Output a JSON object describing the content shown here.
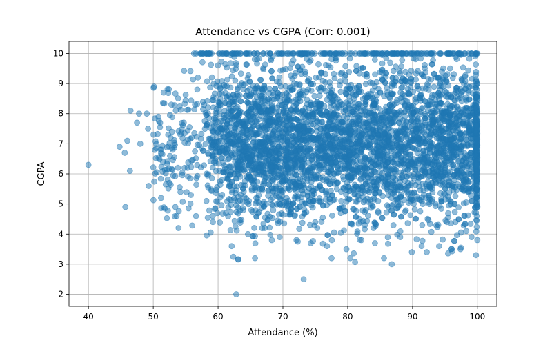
{
  "chart_data": {
    "type": "scatter",
    "title": "Attendance vs CGPA (Corr: 0.001)",
    "xlabel": "Attendance (%)",
    "ylabel": "CGPA",
    "xlim": [
      37,
      103
    ],
    "ylim": [
      1.6,
      10.4
    ],
    "xticks": [
      40,
      50,
      60,
      70,
      80,
      90,
      100
    ],
    "yticks": [
      2,
      3,
      4,
      5,
      6,
      7,
      8,
      9,
      10
    ],
    "grid": true,
    "marker_color": "#1f77b4",
    "marker_alpha": 0.5,
    "series": [
      {
        "points": [
          [
            40,
            6.3
          ],
          [
            45.7,
            4.9
          ],
          [
            44.8,
            6.9
          ],
          [
            45.6,
            6.7
          ],
          [
            46,
            7.1
          ],
          [
            46.4,
            6.1
          ],
          [
            46.5,
            8.1
          ],
          [
            47.5,
            7.7
          ],
          [
            47.8,
            8.0
          ],
          [
            48.0,
            7.0
          ],
          [
            49.0,
            8.0
          ],
          [
            49.2,
            7.5
          ],
          [
            49.3,
            5.6
          ],
          [
            50.1,
            8.9
          ],
          [
            50.8,
            7.9
          ],
          [
            51.2,
            5.2
          ],
          [
            51.5,
            6.4
          ],
          [
            51.6,
            8.7
          ],
          [
            52.3,
            7.3
          ],
          [
            52.5,
            5.7
          ],
          [
            52.8,
            8.3
          ],
          [
            53.0,
            6.8
          ],
          [
            53.4,
            4.9
          ],
          [
            53.6,
            4.6
          ],
          [
            53.9,
            4.2
          ],
          [
            54.2,
            5.4
          ],
          [
            54.7,
            7.7
          ],
          [
            55.3,
            6.2
          ],
          [
            55.8,
            5.3
          ],
          [
            56.3,
            10.0
          ],
          [
            56.6,
            4.6
          ],
          [
            56.9,
            9.2
          ],
          [
            57.7,
            10.0
          ],
          [
            58.2,
            5.1
          ],
          [
            58.6,
            10.0
          ],
          [
            59.2,
            4.4
          ],
          [
            60.3,
            10.0
          ],
          [
            61.3,
            10.0
          ],
          [
            62.1,
            3.6
          ],
          [
            62.8,
            2.0
          ],
          [
            63.4,
            10.0
          ],
          [
            64.6,
            4.0
          ],
          [
            65.7,
            3.2
          ],
          [
            67.2,
            4.2
          ],
          [
            68.3,
            3.8
          ],
          [
            69.5,
            3.9
          ],
          [
            72.1,
            3.8
          ],
          [
            73.2,
            2.5
          ],
          [
            74.3,
            3.7
          ],
          [
            76.8,
            3.6
          ],
          [
            77.5,
            3.2
          ],
          [
            79.8,
            3.5
          ],
          [
            80.4,
            3.2
          ],
          [
            82.1,
            3.8
          ],
          [
            84.2,
            3.7
          ],
          [
            85.6,
            3.2
          ],
          [
            86.8,
            3.0
          ],
          [
            88.1,
            3.9
          ],
          [
            89.9,
            3.4
          ],
          [
            91.4,
            3.6
          ],
          [
            92.2,
            3.4
          ],
          [
            94.1,
            3.6
          ],
          [
            95.3,
            4.4
          ],
          [
            96.6,
            4.4
          ],
          [
            97.4,
            3.5
          ],
          [
            98.3,
            4.1
          ],
          [
            99.1,
            3.9
          ],
          [
            99.8,
            3.3
          ],
          [
            99.9,
            4.6
          ],
          [
            100,
            4.9
          ],
          [
            100,
            3.8
          ],
          [
            100,
            10.0
          ],
          [
            99.7,
            9.9
          ],
          [
            98.1,
            10.0
          ],
          [
            96.5,
            10.0
          ],
          [
            94.2,
            10.0
          ],
          [
            92.3,
            10.0
          ],
          [
            90.1,
            10.0
          ],
          [
            88.4,
            10.0
          ],
          [
            86.7,
            10.0
          ],
          [
            84.9,
            10.0
          ],
          [
            82.7,
            10.0
          ],
          [
            80.6,
            10.0
          ],
          [
            78.3,
            10.0
          ],
          [
            76.2,
            10.0
          ],
          [
            74.5,
            10.0
          ],
          [
            72.8,
            10.0
          ],
          [
            70.6,
            10.0
          ],
          [
            69.1,
            10.0
          ],
          [
            67.0,
            10.0
          ]
        ]
      }
    ]
  }
}
